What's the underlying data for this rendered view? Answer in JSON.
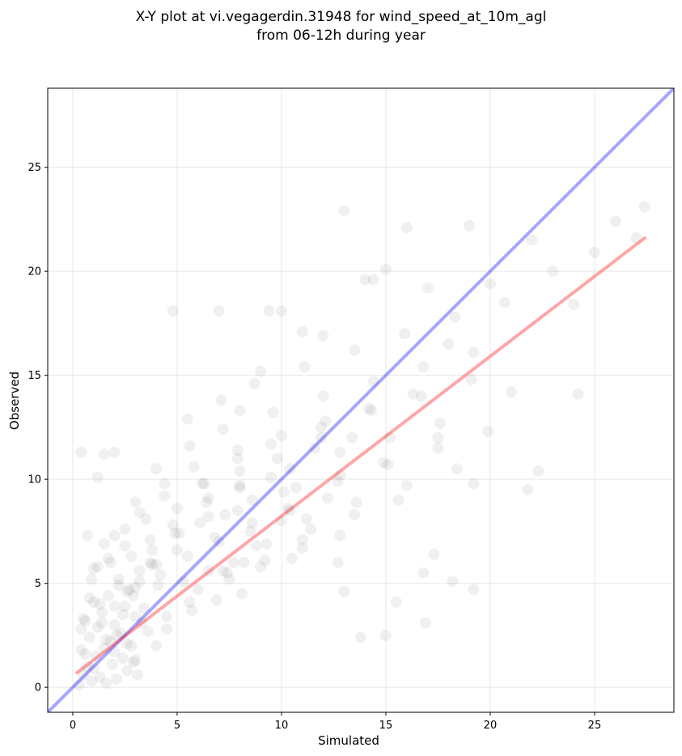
{
  "chart_data": {
    "type": "scatter",
    "title": [
      "X-Y plot at vi.vegagerdin.31948 for wind_speed_at_10m_agl",
      "from 06-12h during year"
    ],
    "xlabel": "Simulated",
    "ylabel": "Observed",
    "xlim": [
      -1.2,
      28.8
    ],
    "ylim": [
      -1.2,
      28.8
    ],
    "xticks": [
      0,
      5,
      10,
      15,
      20,
      25
    ],
    "yticks": [
      0,
      5,
      10,
      15,
      20,
      25
    ],
    "xtick_labels": [
      "0",
      "5",
      "10",
      "15",
      "20",
      "25"
    ],
    "ytick_labels": [
      "0",
      "5",
      "10",
      "15",
      "20",
      "25"
    ],
    "grid": true,
    "lines": [
      {
        "role": "identity",
        "color": "#0000ff",
        "alpha": 0.35,
        "points": [
          [
            -1.2,
            -1.2
          ],
          [
            28.8,
            28.8
          ]
        ]
      },
      {
        "role": "fit",
        "color": "#ff0000",
        "alpha": 0.35,
        "points": [
          [
            0.2,
            0.7
          ],
          [
            27.4,
            21.6
          ]
        ]
      }
    ],
    "series": [
      {
        "marker_color": "#000000",
        "marker_alpha": 0.06,
        "x": [
          0.3,
          0.4,
          0.5,
          0.6,
          0.7,
          0.8,
          0.9,
          1.0,
          1.1,
          1.2,
          1.3,
          1.4,
          1.5,
          1.6,
          1.7,
          1.8,
          1.9,
          2.0,
          2.1,
          2.2,
          2.3,
          2.4,
          2.5,
          2.6,
          2.7,
          2.8,
          2.9,
          3.0,
          3.1,
          3.2,
          0.4,
          0.6,
          0.8,
          1.0,
          1.2,
          1.4,
          1.6,
          1.8,
          2.0,
          2.2,
          2.4,
          2.6,
          2.8,
          3.0,
          3.2,
          3.4,
          3.6,
          3.8,
          4.0,
          4.2,
          0.5,
          0.9,
          1.3,
          1.7,
          2.1,
          2.5,
          2.9,
          3.3,
          3.7,
          4.1,
          4.5,
          4.9,
          5.3,
          5.7,
          6.1,
          6.5,
          6.9,
          7.3,
          7.7,
          8.1,
          1.0,
          1.5,
          2.0,
          2.5,
          3.0,
          3.5,
          4.0,
          4.5,
          5.0,
          5.5,
          6.0,
          6.5,
          7.0,
          7.5,
          8.0,
          8.5,
          9.0,
          9.5,
          10.0,
          10.5,
          2.0,
          2.6,
          3.2,
          3.8,
          4.4,
          5.0,
          5.6,
          6.2,
          6.8,
          7.4,
          8.0,
          8.6,
          9.2,
          9.8,
          10.4,
          11.0,
          11.6,
          12.2,
          12.8,
          13.4,
          3.0,
          3.7,
          4.4,
          5.1,
          5.8,
          6.5,
          7.2,
          7.9,
          8.6,
          9.3,
          10.0,
          10.7,
          11.4,
          12.1,
          12.8,
          13.5,
          14.2,
          14.9,
          15.6,
          16.3,
          4.0,
          4.8,
          5.6,
          6.4,
          7.2,
          8.0,
          8.8,
          9.6,
          10.4,
          11.2,
          12.0,
          12.8,
          13.6,
          14.4,
          15.2,
          16.0,
          16.8,
          17.6,
          18.4,
          19.2,
          5.5,
          6.3,
          7.1,
          7.9,
          8.7,
          9.5,
          10.3,
          11.1,
          11.9,
          12.7,
          13.5,
          14.3,
          15.1,
          15.9,
          16.7,
          17.5,
          18.3,
          19.1,
          19.9,
          20.7,
          7.0,
          8.0,
          9.0,
          10.0,
          11.0,
          12.0,
          13.0,
          14.0,
          15.0,
          16.0,
          17.0,
          18.0,
          19.0,
          20.0,
          21.0,
          22.0,
          23.0,
          24.0,
          25.0,
          26.0,
          27.0,
          27.4,
          24.2,
          22.3,
          21.8,
          19.2,
          17.5,
          15.5,
          13.0,
          11.0,
          0.4,
          1.2,
          1.5,
          2.0,
          0.7,
          4.8,
          7.9,
          8.2,
          13.8,
          15.0,
          16.8,
          18.2,
          19.2,
          16.9,
          12.7,
          10.1,
          9.4,
          11.9,
          14.4,
          17.3
        ],
        "y": [
          0.1,
          1.8,
          0.6,
          3.2,
          1.0,
          2.4,
          0.3,
          4.1,
          1.5,
          2.9,
          0.5,
          3.6,
          1.9,
          0.2,
          4.4,
          2.2,
          1.1,
          3.0,
          0.4,
          5.2,
          2.6,
          1.4,
          3.9,
          0.8,
          4.7,
          2.0,
          1.2,
          3.4,
          0.6,
          5.6,
          2.8,
          1.6,
          4.3,
          0.9,
          5.8,
          3.1,
          2.3,
          6.0,
          1.7,
          4.9,
          3.5,
          2.1,
          6.3,
          1.3,
          5.1,
          3.8,
          2.7,
          6.6,
          2.0,
          5.4,
          3.3,
          5.2,
          4.0,
          6.2,
          2.5,
          6.8,
          4.4,
          3.1,
          7.1,
          4.9,
          2.8,
          7.4,
          5.1,
          3.7,
          7.9,
          5.6,
          4.2,
          8.3,
          6.0,
          4.5,
          5.7,
          6.9,
          3.9,
          7.6,
          4.8,
          8.1,
          5.9,
          3.4,
          8.6,
          6.3,
          4.7,
          9.1,
          7.0,
          5.2,
          9.6,
          7.5,
          5.8,
          10.1,
          8.0,
          6.2,
          7.3,
          4.6,
          8.4,
          5.9,
          9.2,
          6.6,
          4.1,
          9.8,
          7.2,
          5.5,
          10.4,
          7.9,
          6.1,
          11.0,
          8.5,
          6.7,
          11.5,
          9.1,
          7.3,
          12.0,
          8.9,
          6.0,
          9.8,
          7.4,
          10.6,
          8.2,
          5.6,
          11.4,
          9.0,
          6.9,
          12.1,
          9.6,
          7.6,
          12.8,
          10.2,
          8.3,
          13.4,
          10.8,
          9.0,
          14.1,
          10.5,
          7.8,
          11.6,
          8.9,
          12.4,
          9.7,
          6.8,
          13.2,
          10.5,
          8.1,
          14.0,
          11.3,
          8.9,
          14.7,
          12.0,
          9.7,
          15.4,
          12.7,
          10.5,
          16.1,
          12.9,
          9.8,
          13.8,
          11.0,
          14.6,
          11.7,
          8.6,
          15.4,
          12.5,
          9.9,
          16.2,
          13.3,
          10.7,
          17.0,
          14.0,
          11.5,
          17.8,
          14.8,
          12.3,
          18.5,
          18.1,
          13.3,
          15.2,
          18.1,
          17.1,
          16.9,
          22.9,
          19.6,
          20.1,
          22.1,
          19.2,
          16.5,
          22.2,
          19.4,
          14.2,
          21.5,
          20.0,
          18.4,
          20.9,
          22.4,
          21.6,
          23.1,
          14.1,
          10.4,
          9.5,
          9.8,
          12.0,
          4.1,
          4.6,
          7.1,
          11.3,
          10.1,
          11.2,
          11.3,
          7.3,
          18.1,
          8.5,
          6.0,
          2.4,
          2.5,
          5.5,
          5.1,
          4.7,
          3.1,
          6.0,
          9.4,
          18.1,
          12.0,
          19.6,
          6.4
        ]
      }
    ]
  }
}
